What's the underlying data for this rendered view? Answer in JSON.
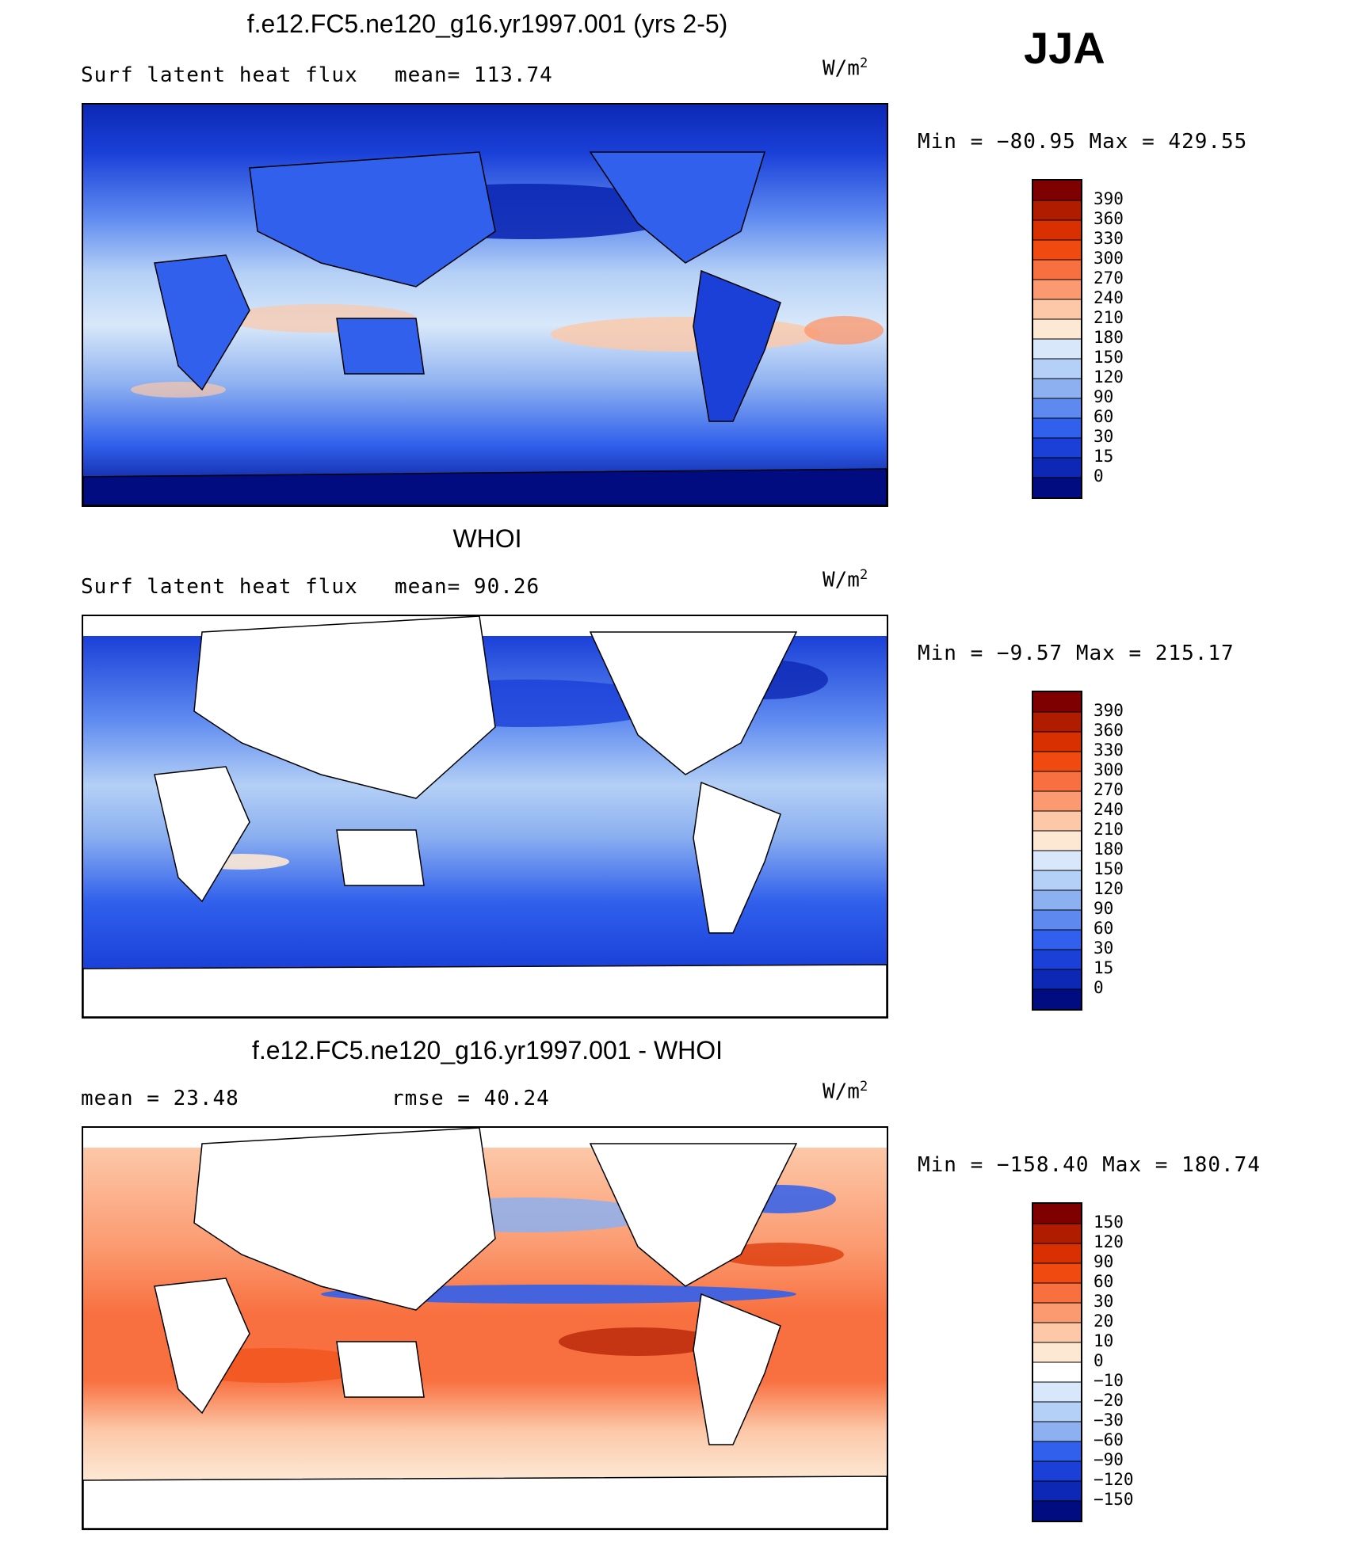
{
  "season": "JJA",
  "chart_data": [
    {
      "type": "heatmap",
      "title": "f.e12.FC5.ne120_g16.yr1997.001 (yrs 2-5)",
      "variable": "Surf latent heat flux",
      "stat_text": "mean=  113.74",
      "units_base": "W/m",
      "units_exp": "2",
      "minmax_text": "Min  =  −80.95  Max  =  429.55",
      "levels": [
        "390",
        "360",
        "330",
        "300",
        "270",
        "240",
        "210",
        "180",
        "150",
        "120",
        "90",
        "60",
        "30",
        "15",
        "0"
      ],
      "colors": [
        "#7f0000",
        "#b01c00",
        "#d83000",
        "#f04a10",
        "#f87040",
        "#fb9a70",
        "#fcc8a8",
        "#fde8d4",
        "#d8e8fa",
        "#b4d0f6",
        "#8cb0f0",
        "#5e8af0",
        "#3060ec",
        "#1a40d8",
        "#0c28b4",
        "#000c80"
      ]
    },
    {
      "type": "heatmap",
      "title": "WHOI",
      "variable": "Surf latent heat flux",
      "stat_text": "mean=   90.26",
      "units_base": "W/m",
      "units_exp": "2",
      "minmax_text": "Min  =   −9.57  Max  =  215.17",
      "levels": [
        "390",
        "360",
        "330",
        "300",
        "270",
        "240",
        "210",
        "180",
        "150",
        "120",
        "90",
        "60",
        "30",
        "15",
        "0"
      ],
      "colors": [
        "#7f0000",
        "#b01c00",
        "#d83000",
        "#f04a10",
        "#f87040",
        "#fb9a70",
        "#fcc8a8",
        "#fde8d4",
        "#d8e8fa",
        "#b4d0f6",
        "#8cb0f0",
        "#5e8af0",
        "#3060ec",
        "#1a40d8",
        "#0c28b4",
        "#000c80"
      ]
    },
    {
      "type": "heatmap",
      "title": "f.e12.FC5.ne120_g16.yr1997.001 - WHOI",
      "variable": "mean  =    23.48",
      "stat_text": "rmse  =    40.24",
      "units_base": "W/m",
      "units_exp": "2",
      "minmax_text": "Min  =  −158.40  Max  =  180.74",
      "levels": [
        "150",
        "120",
        "90",
        "60",
        "30",
        "20",
        "10",
        "0",
        "−10",
        "−20",
        "−30",
        "−60",
        "−90",
        "−120",
        "−150"
      ],
      "colors": [
        "#7f0000",
        "#b01c00",
        "#d83000",
        "#f04a10",
        "#f87040",
        "#fb9a70",
        "#fcc8a8",
        "#fde8d4",
        "#ffffff",
        "#d8e8fa",
        "#b4d0f6",
        "#8cb0f0",
        "#3060ec",
        "#1a40d8",
        "#0c28b4",
        "#000c80"
      ]
    }
  ]
}
